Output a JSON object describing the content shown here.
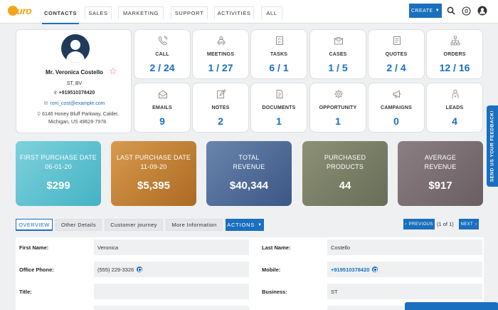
{
  "app": {
    "logo_text": "auro",
    "colors": {
      "accent": "#1a6fbe",
      "logo": "#f4a51c",
      "value_blue": "#1a6fbe"
    }
  },
  "nav": {
    "tabs": [
      {
        "label": "CONTACTS",
        "active": true
      },
      {
        "label": "SALES"
      },
      {
        "label": "MARKETING"
      },
      {
        "label": "SUPPORT"
      },
      {
        "label": "ACTIVITIES"
      },
      {
        "label": "ALL"
      }
    ],
    "create_label": "CREATE",
    "icons": [
      "search-icon",
      "notification-icon",
      "user-icon"
    ]
  },
  "profile": {
    "name": "Mr. Veronica Costello",
    "title": "ST, BV",
    "phone": "+919510378420",
    "email": "roni_cost@example.com",
    "address": "6146 Honey Bluff Parkway, Calder, Michigan, US 49628-7978."
  },
  "tiles": [
    {
      "label": "CALL",
      "value": "2 / 24",
      "icon": "phone-icon"
    },
    {
      "label": "MEETINGS",
      "value": "1 / 27",
      "icon": "meeting-icon"
    },
    {
      "label": "TASKS",
      "value": "6 / 1",
      "icon": "tasks-icon"
    },
    {
      "label": "CASES",
      "value": "1 / 5",
      "icon": "cases-icon"
    },
    {
      "label": "QUOTES",
      "value": "2 / 4",
      "icon": "quotes-icon"
    },
    {
      "label": "ORDERS",
      "value": "12 / 16",
      "icon": "orders-icon"
    },
    {
      "label": "EMAILS",
      "value": "9",
      "icon": "email-icon"
    },
    {
      "label": "NOTES",
      "value": "2",
      "icon": "notes-icon"
    },
    {
      "label": "DOCUMENTS",
      "value": "1",
      "icon": "documents-icon"
    },
    {
      "label": "OPPORTUNITY",
      "value": "1",
      "icon": "opportunity-icon"
    },
    {
      "label": "CAMPAIGNS",
      "value": "0",
      "icon": "campaign-icon"
    },
    {
      "label": "LEADS",
      "value": "4",
      "icon": "leads-icon"
    }
  ],
  "metrics": [
    {
      "title_1": "FIRST PURCHASE DATE",
      "title_2": "06-01-20",
      "value": "$299",
      "color_from": "#7dd2dc",
      "color_to": "#4bb6c6"
    },
    {
      "title_1": "LAST PURCHASE DATE",
      "title_2": "11-09-20",
      "value": "$5,395",
      "color_from": "#d79a4d",
      "color_to": "#b06f25"
    },
    {
      "title_1": "TOTAL",
      "title_2": "REVENUE",
      "value": "$40,344",
      "color_from": "#6a84ad",
      "color_to": "#3e5a87"
    },
    {
      "title_1": "PURCHASED",
      "title_2": "PRODUCTS",
      "value": "44",
      "color_from": "#8a8f74",
      "color_to": "#6b705a"
    },
    {
      "title_1": "AVERAGE",
      "title_2": "REVENUE",
      "value": "$917",
      "color_from": "#8a7e82",
      "color_to": "#6e6266"
    }
  ],
  "subtabs": [
    {
      "label": "OVERVIEW",
      "active": true
    },
    {
      "label": "Other Details"
    },
    {
      "label": "Customer journey"
    },
    {
      "label": "More Information"
    }
  ],
  "actions_label": "ACTIONS",
  "pager": {
    "prev": "PREVIOUS",
    "next": "NEXT",
    "count": "(1 of 1)"
  },
  "fields": {
    "first_name": {
      "label": "First Name:",
      "value": "Veronica"
    },
    "last_name": {
      "label": "Last Name:",
      "value": "Costello"
    },
    "office_phone": {
      "label": "Office Phone:",
      "value": "(555) 229-3326"
    },
    "mobile": {
      "label": "Mobile:",
      "value": "+919510378420"
    },
    "title": {
      "label": "Title:",
      "value": ""
    },
    "business": {
      "label": "Business:",
      "value": "ST"
    }
  },
  "feedback_label": "SEND US YOUR FEEDBACK!"
}
